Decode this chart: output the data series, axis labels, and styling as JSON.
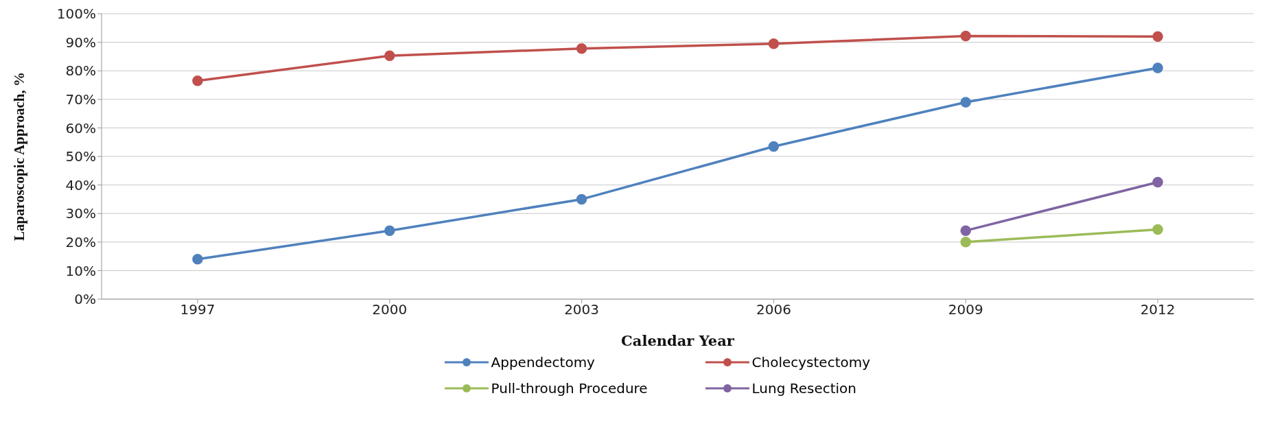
{
  "chart_data": {
    "type": "line",
    "xlabel": "Calendar Year",
    "ylabel": "Laparoscopic Approach, %",
    "categories": [
      "1997",
      "2000",
      "2003",
      "2006",
      "2009",
      "2012"
    ],
    "series": [
      {
        "name": "Appendectomy",
        "color": "#4f81bd",
        "values": [
          0.14,
          0.24,
          0.35,
          0.535,
          0.69,
          0.81
        ]
      },
      {
        "name": "Cholecystectomy",
        "color": "#c0504d",
        "values": [
          0.765,
          0.853,
          0.878,
          0.895,
          0.922,
          0.92
        ]
      },
      {
        "name": "Pull-through Procedure",
        "color": "#9bbb59",
        "values": [
          null,
          null,
          null,
          null,
          0.2,
          0.244
        ]
      },
      {
        "name": "Lung Resection",
        "color": "#8064a2",
        "values": [
          null,
          null,
          null,
          null,
          0.24,
          0.41
        ]
      }
    ],
    "ylim": [
      0,
      1
    ],
    "yticks": [
      {
        "value": 0,
        "label": "0%"
      },
      {
        "value": 0.1,
        "label": "10%"
      },
      {
        "value": 0.2,
        "label": "20%"
      },
      {
        "value": 0.3,
        "label": "30%"
      },
      {
        "value": 0.4,
        "label": "40%"
      },
      {
        "value": 0.5,
        "label": "50%"
      },
      {
        "value": 0.6,
        "label": "60%"
      },
      {
        "value": 0.7,
        "label": "70%"
      },
      {
        "value": 0.8,
        "label": "80%"
      },
      {
        "value": 0.9,
        "label": "90%"
      },
      {
        "value": 1,
        "label": "100%"
      }
    ],
    "grid": "y",
    "legend": "bottom",
    "marker": "circle",
    "line_style": "solid"
  }
}
